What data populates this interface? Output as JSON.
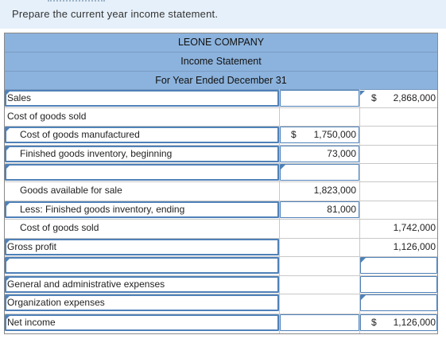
{
  "prompt": "Prepare the current year income statement.",
  "statement": {
    "company": "LEONE COMPANY",
    "title": "Income Statement",
    "period": "For Year Ended December 31"
  },
  "rows": {
    "sales": {
      "label": "Sales",
      "dollar": "$",
      "value": "2,868,000"
    },
    "cogs_heading": {
      "label": "Cost of goods sold"
    },
    "cogm": {
      "label": "Cost of goods manufactured",
      "dollar": "$",
      "value": "1,750,000"
    },
    "fg_begin": {
      "label": "Finished goods inventory, beginning",
      "value": "73,000"
    },
    "blank1": {
      "label": ""
    },
    "goods_available": {
      "label": "Goods available for sale",
      "value": "1,823,000"
    },
    "fg_end": {
      "label": "Less: Finished goods inventory, ending",
      "value": "81,000"
    },
    "cogs_total": {
      "label": "Cost of goods sold",
      "value": "1,742,000"
    },
    "gross_profit": {
      "label": "Gross profit",
      "value": "1,126,000"
    },
    "blank2": {
      "label": ""
    },
    "ga_expenses": {
      "label": "General and administrative expenses"
    },
    "org_expenses": {
      "label": "Organization expenses"
    },
    "net_income": {
      "label": "Net income",
      "dollar": "$",
      "value": "1,126,000"
    }
  }
}
